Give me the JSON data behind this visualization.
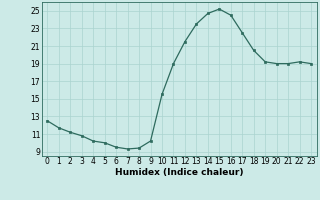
{
  "x": [
    0,
    1,
    2,
    3,
    4,
    5,
    6,
    7,
    8,
    9,
    10,
    11,
    12,
    13,
    14,
    15,
    16,
    17,
    18,
    19,
    20,
    21,
    22,
    23
  ],
  "y": [
    12.5,
    11.7,
    11.2,
    10.8,
    10.2,
    10.0,
    9.5,
    9.3,
    9.4,
    10.2,
    15.5,
    19.0,
    21.5,
    23.5,
    24.7,
    25.2,
    24.5,
    22.5,
    20.5,
    19.2,
    19.0,
    19.0,
    19.2,
    19.0
  ],
  "line_color": "#2e6b5e",
  "marker": "s",
  "marker_size": 2,
  "bg_color": "#cceae7",
  "grid_color": "#aad4cf",
  "xlabel": "Humidex (Indice chaleur)",
  "xlim": [
    -0.5,
    23.5
  ],
  "ylim": [
    8.5,
    26
  ],
  "yticks": [
    9,
    11,
    13,
    15,
    17,
    19,
    21,
    23,
    25
  ],
  "xticks": [
    0,
    1,
    2,
    3,
    4,
    5,
    6,
    7,
    8,
    9,
    10,
    11,
    12,
    13,
    14,
    15,
    16,
    17,
    18,
    19,
    20,
    21,
    22,
    23
  ],
  "tick_fontsize": 5.5,
  "xlabel_fontsize": 6.5
}
